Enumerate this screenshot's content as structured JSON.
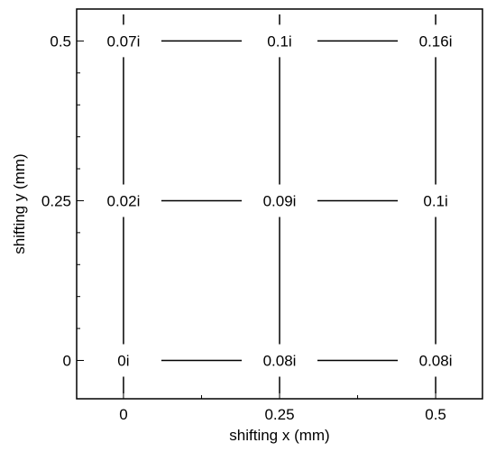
{
  "chart_data": {
    "type": "scatter",
    "title": "",
    "xlabel": "shifting x (mm)",
    "ylabel": "shifting y (mm)",
    "xlim": [
      -0.075,
      0.575
    ],
    "ylim": [
      -0.06,
      0.55
    ],
    "x_ticks": [
      {
        "value": 0,
        "label": "0"
      },
      {
        "value": 0.25,
        "label": "0.25"
      },
      {
        "value": 0.5,
        "label": "0.5"
      }
    ],
    "y_ticks": [
      {
        "value": 0,
        "label": "0"
      },
      {
        "value": 0.25,
        "label": "0.25"
      },
      {
        "value": 0.5,
        "label": "0.5"
      }
    ],
    "grid": false,
    "grid_connectors": true,
    "points": [
      {
        "x": 0,
        "y": 0.5,
        "label": "0.07i"
      },
      {
        "x": 0.25,
        "y": 0.5,
        "label": "0.1i"
      },
      {
        "x": 0.5,
        "y": 0.5,
        "label": "0.16i"
      },
      {
        "x": 0,
        "y": 0.25,
        "label": "0.02i"
      },
      {
        "x": 0.25,
        "y": 0.25,
        "label": "0.09i"
      },
      {
        "x": 0.5,
        "y": 0.25,
        "label": "0.1i"
      },
      {
        "x": 0,
        "y": 0,
        "label": "0i"
      },
      {
        "x": 0.25,
        "y": 0,
        "label": "0.08i"
      },
      {
        "x": 0.5,
        "y": 0,
        "label": "0.08i"
      }
    ]
  }
}
